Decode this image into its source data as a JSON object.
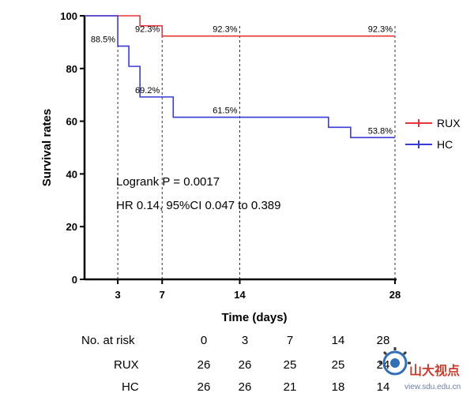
{
  "chart_data": {
    "type": "line",
    "step": true,
    "xlabel": "Time (days)",
    "ylabel": "Survival rates",
    "xlim": [
      0,
      28
    ],
    "ylim": [
      0,
      100
    ],
    "x_ticks": [
      3,
      7,
      14,
      28
    ],
    "y_ticks": [
      0,
      20,
      40,
      60,
      80,
      100
    ],
    "grid": false,
    "legend_position": "right",
    "reference_lines_x": [
      3,
      7,
      14,
      28
    ],
    "series": [
      {
        "name": "RUX",
        "color": "#e8333a",
        "steps": [
          [
            0,
            100
          ],
          [
            5,
            96.2
          ],
          [
            7,
            92.3
          ],
          [
            28,
            92.3
          ]
        ]
      },
      {
        "name": "HC",
        "color": "#3a3ad6",
        "steps": [
          [
            0,
            100
          ],
          [
            3,
            88.5
          ],
          [
            4,
            80.8
          ],
          [
            5,
            69.2
          ],
          [
            8,
            61.5
          ],
          [
            22,
            57.7
          ],
          [
            24,
            53.8
          ],
          [
            28,
            53.8
          ]
        ]
      }
    ],
    "annotations": [
      {
        "text": "92.3%",
        "x": 7,
        "y": 92.3
      },
      {
        "text": "92.3%",
        "x": 14,
        "y": 92.3
      },
      {
        "text": "92.3%",
        "x": 28,
        "y": 92.3
      },
      {
        "text": "88.5%",
        "x": 3,
        "y": 88.5
      },
      {
        "text": "69.2%",
        "x": 7,
        "y": 69.2
      },
      {
        "text": "61.5%",
        "x": 14,
        "y": 61.5
      },
      {
        "text": "53.8%",
        "x": 28,
        "y": 53.8
      }
    ],
    "stats": {
      "logrank": "Logrank P = 0.0017",
      "hr": "HR 0.14, 95%CI 0.047 to 0.389"
    },
    "risk_table": {
      "header_label": "No. at risk",
      "times": [
        "0",
        "3",
        "7",
        "14",
        "28"
      ],
      "rows": [
        {
          "label": "RUX",
          "values": [
            "26",
            "26",
            "25",
            "25",
            "24"
          ]
        },
        {
          "label": "HC",
          "values": [
            "26",
            "26",
            "21",
            "18",
            "14"
          ]
        }
      ]
    }
  },
  "watermark": {
    "text": "山大视点",
    "url": "view.sdu.edu.cn"
  }
}
